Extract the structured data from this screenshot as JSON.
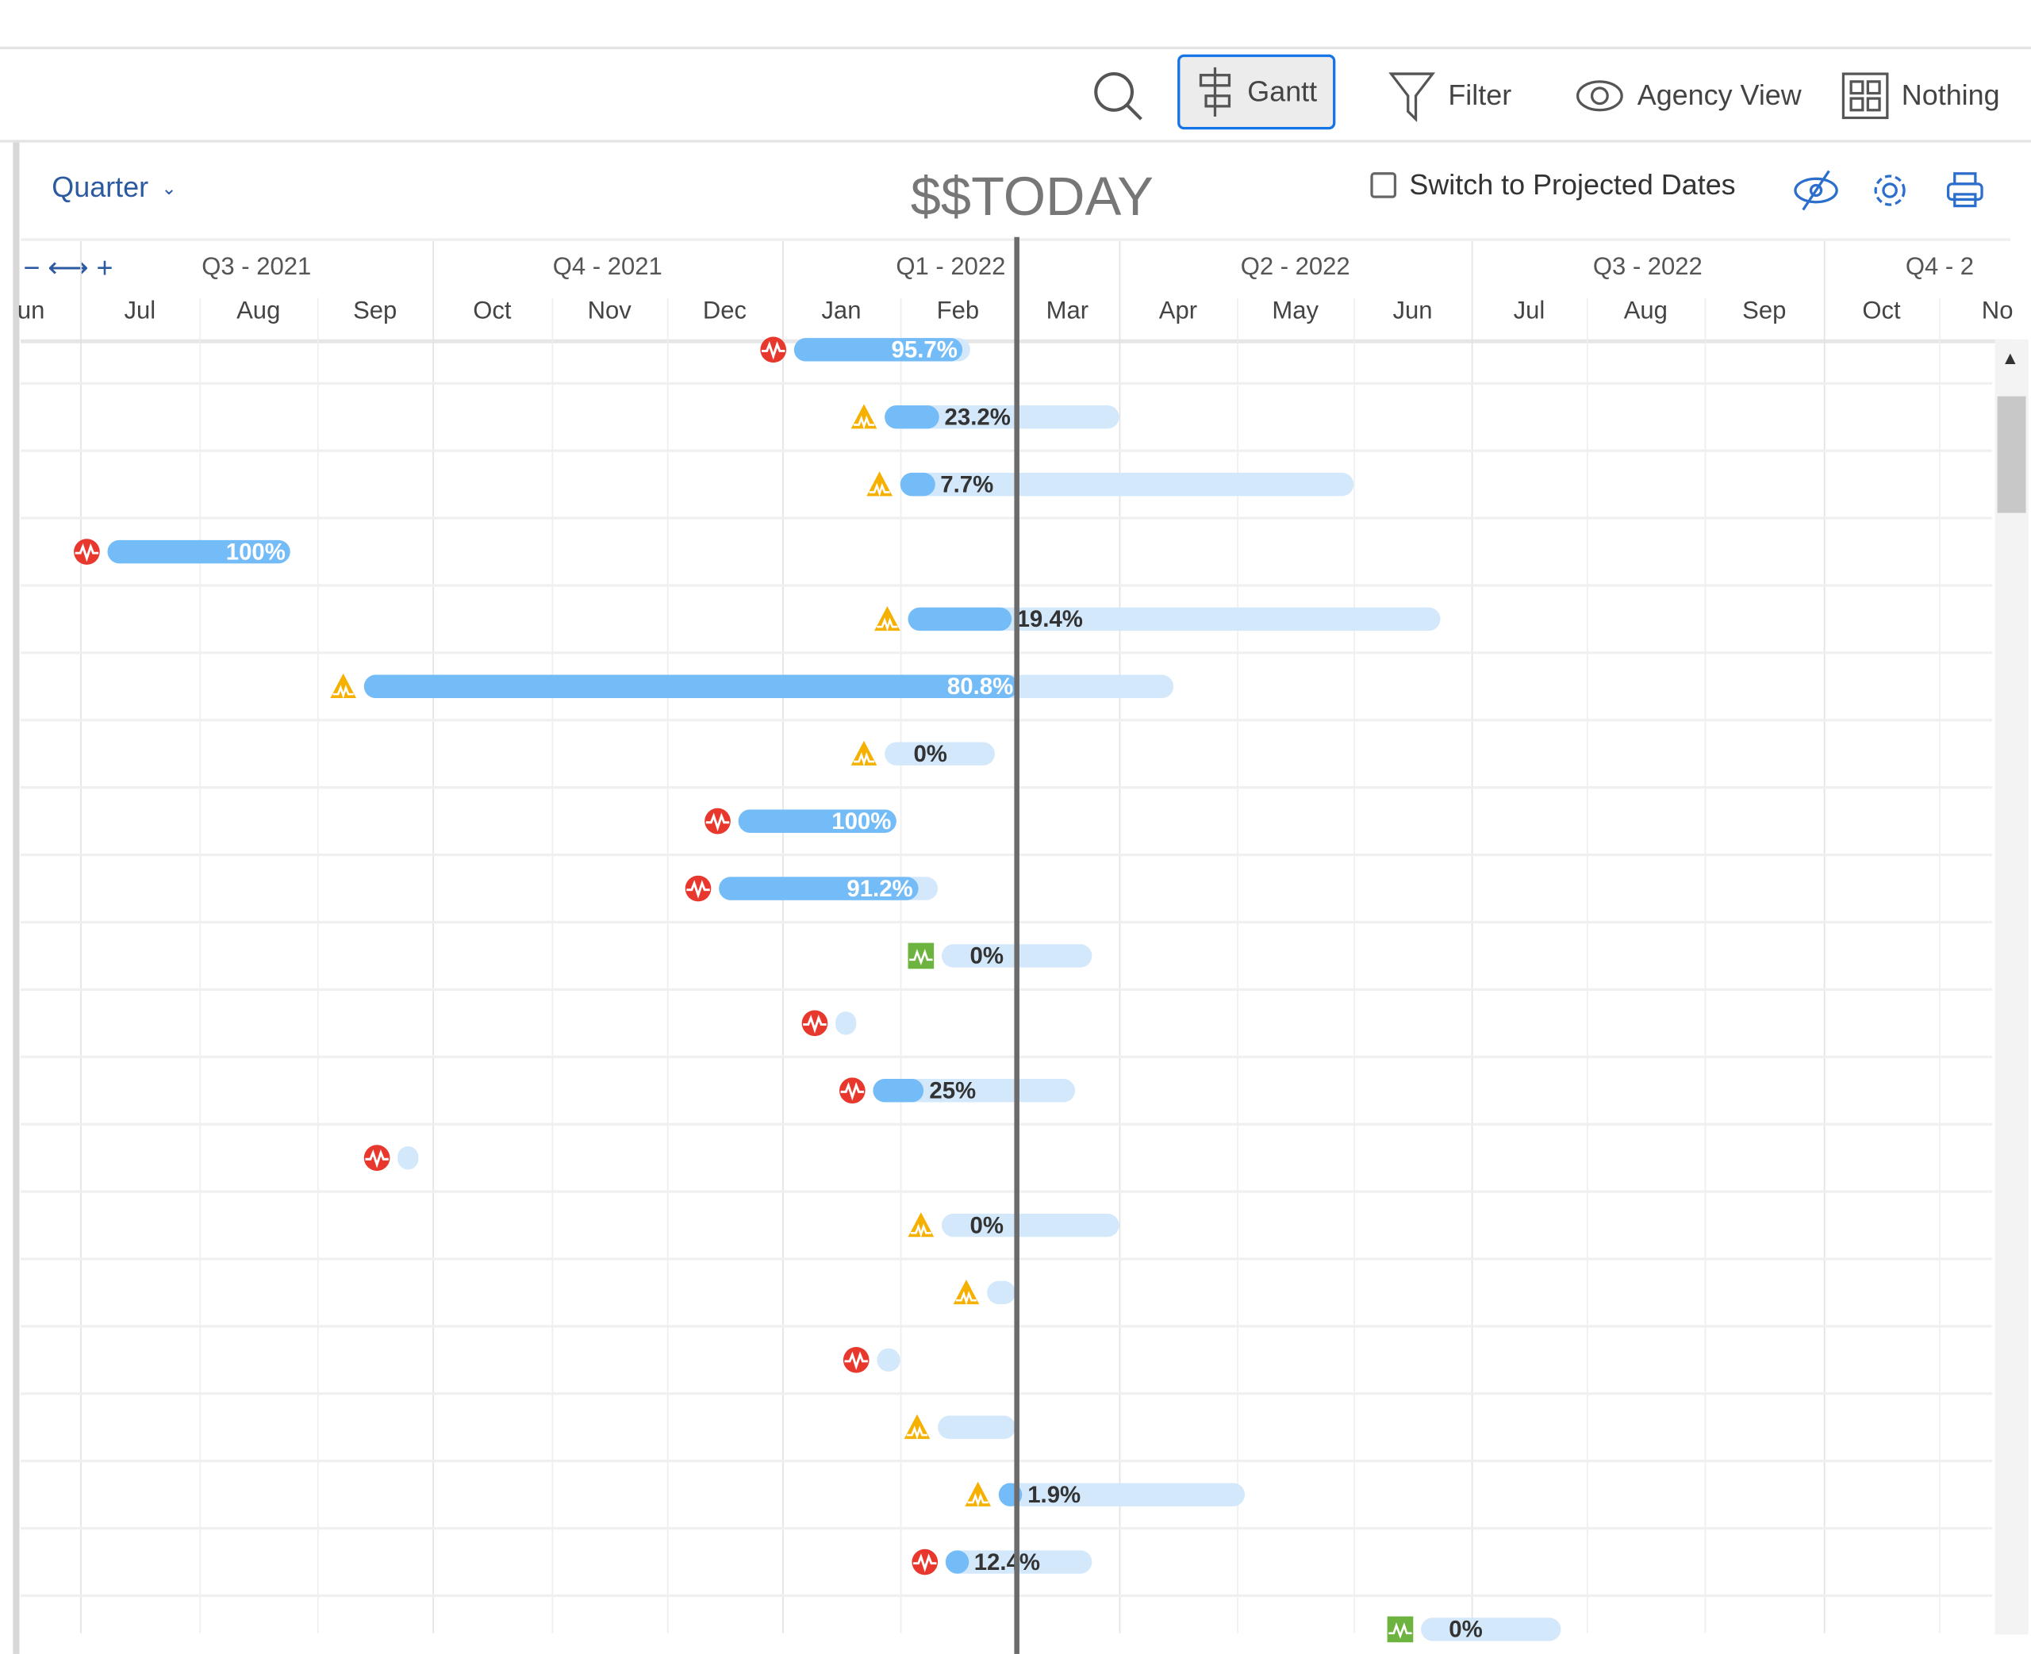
{
  "toolbar": {
    "gantt": "Gantt",
    "filter": "Filter",
    "agency_view": "Agency View",
    "nothing": "Nothing"
  },
  "controls": {
    "scale": "Quarter",
    "today_label": "$$TODAY",
    "projected": "Switch to Projected Dates",
    "projected_checked": false,
    "zoom_out": "−",
    "fit": "⟷",
    "zoom_in": "+"
  },
  "colors": {
    "red": "#e8372c",
    "yellow": "#f5b000",
    "green": "#6db33f",
    "bar_bg": "#d3e8fb",
    "bar_fill": "#74bcf7"
  },
  "chart_data": {
    "type": "gantt",
    "quarters": [
      "Q3 - 2021",
      "Q4 - 2021",
      "Q1 - 2022",
      "Q2 - 2022",
      "Q3 - 2022",
      "Q4 - 2"
    ],
    "months": [
      "un",
      "Jul",
      "Aug",
      "Sep",
      "Oct",
      "Nov",
      "Dec",
      "Jan",
      "Feb",
      "Mar",
      "Apr",
      "May",
      "Jun",
      "Jul",
      "Aug",
      "Sep",
      "Oct",
      "No"
    ],
    "today": "2022-03-01",
    "tasks": [
      {
        "status": "red",
        "start": "2022-01-04",
        "end": "2022-02-18",
        "pct": "95.7%",
        "p": 95.7
      },
      {
        "status": "yellow",
        "start": "2022-01-28",
        "end": "2022-04-01",
        "pct": "23.2%",
        "p": 23.2
      },
      {
        "status": "yellow",
        "start": "2022-02-01",
        "end": "2022-06-01",
        "pct": "7.7%",
        "p": 7.7
      },
      {
        "status": "red",
        "start": "2021-07-08",
        "end": "2021-08-25",
        "pct": "100%",
        "p": 100
      },
      {
        "status": "yellow",
        "start": "2022-02-03",
        "end": "2022-06-23",
        "pct": "19.4%",
        "p": 19.4
      },
      {
        "status": "yellow",
        "start": "2021-09-13",
        "end": "2022-04-15",
        "pct": "80.8%",
        "p": 80.8
      },
      {
        "status": "yellow",
        "start": "2022-01-28",
        "end": "2022-02-24",
        "pct": "0%",
        "p": 0
      },
      {
        "status": "red",
        "start": "2021-12-20",
        "end": "2022-01-31",
        "pct": "100%",
        "p": 100
      },
      {
        "status": "red",
        "start": "2021-12-15",
        "end": "2022-02-10",
        "pct": "91.2%",
        "p": 91.2
      },
      {
        "status": "green",
        "start": "2022-02-11",
        "end": "2022-03-24",
        "pct": "0%",
        "p": 0
      },
      {
        "status": "red",
        "start": "2022-01-15",
        "end": "2022-01-20",
        "pct": "",
        "p": 0
      },
      {
        "status": "red",
        "start": "2022-01-25",
        "end": "2022-03-19",
        "pct": "25%",
        "p": 25
      },
      {
        "status": "red",
        "start": "2021-09-22",
        "end": "2021-09-27",
        "pct": "",
        "p": 0
      },
      {
        "status": "yellow",
        "start": "2022-02-11",
        "end": "2022-04-01",
        "pct": "0%",
        "p": 0
      },
      {
        "status": "yellow",
        "start": "2022-02-22",
        "end": "2022-03-01",
        "pct": "",
        "p": 0
      },
      {
        "status": "red",
        "start": "2022-01-26",
        "end": "2022-02-01",
        "pct": "",
        "p": 0
      },
      {
        "status": "yellow",
        "start": "2022-02-10",
        "end": "2022-03-01",
        "pct": "",
        "p": 0
      },
      {
        "status": "yellow",
        "start": "2022-02-25",
        "end": "2022-05-03",
        "pct": "1.9%",
        "p": 1.9
      },
      {
        "status": "red",
        "start": "2022-02-12",
        "end": "2022-03-24",
        "pct": "12.4%",
        "p": 12.4
      },
      {
        "status": "green",
        "start": "2022-06-18",
        "end": "2022-07-25",
        "pct": "0%",
        "p": 0
      }
    ]
  }
}
